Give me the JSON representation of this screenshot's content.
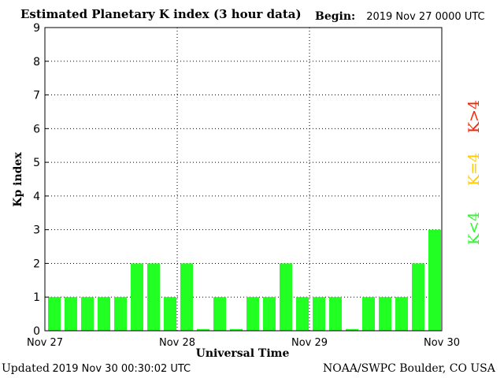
{
  "header": {
    "title": "Estimated Planetary K index (3 hour data)",
    "begin_label": "Begin:",
    "begin_value": "2019 Nov 27 0000 UTC"
  },
  "footer": {
    "updated_label": "Updated",
    "updated_value": "2019 Nov 30 00:30:02 UTC",
    "source": "NOAA/SWPC Boulder, CO USA"
  },
  "colors": {
    "k_below_4": "#22ff22",
    "k_equals_4": "#ffcc00",
    "k_above_4": "#ff2200"
  },
  "chart_data": {
    "type": "bar",
    "title": "Estimated Planetary K index (3 hour data)",
    "xlabel": "Universal Time",
    "ylabel": "Kp index",
    "ylim": [
      0,
      9
    ],
    "yticks": [
      "0",
      "1",
      "2",
      "3",
      "4",
      "5",
      "6",
      "7",
      "8",
      "9"
    ],
    "xticks": [
      "Nov 27",
      "Nov 28",
      "Nov 29",
      "Nov 30"
    ],
    "grid": true,
    "values": [
      1,
      1,
      1,
      1,
      1,
      2,
      2,
      1,
      2,
      0.05,
      1,
      0.05,
      1,
      1,
      2,
      1,
      1,
      1,
      0.05,
      1,
      1,
      1,
      2,
      3
    ],
    "legend": [
      {
        "label": "K<4",
        "color": "#22ff22"
      },
      {
        "label": "K=4",
        "color": "#ffcc00"
      },
      {
        "label": "K>4",
        "color": "#ff2200"
      }
    ]
  }
}
